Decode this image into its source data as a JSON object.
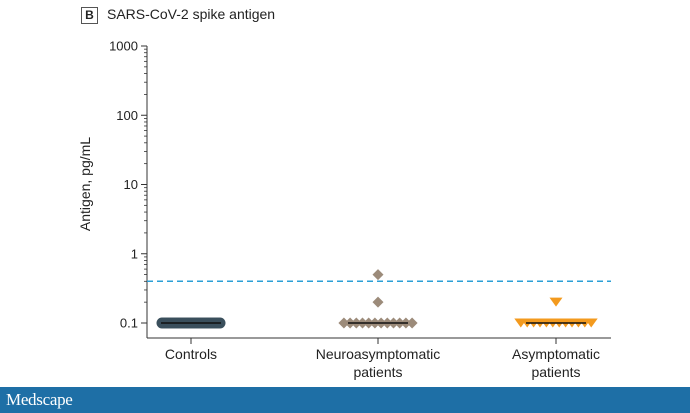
{
  "panel": {
    "badge": "B",
    "title": "SARS-CoV-2 spike antigen"
  },
  "footer": {
    "logo_text": "Medscape"
  },
  "chart_data": {
    "type": "scatter",
    "title": "SARS-CoV-2 spike antigen",
    "ylabel": "Antigen, pg/mL",
    "yscale": "log",
    "ylim": [
      0.1,
      1000
    ],
    "yticks": [
      0.1,
      1,
      10,
      100,
      1000
    ],
    "ytick_labels": [
      "0.1",
      "1",
      "10",
      "100",
      "1000"
    ],
    "threshold": 0.4,
    "categories": [
      {
        "label_lines": [
          "Controls"
        ]
      },
      {
        "label_lines": [
          "Neuroasymptomatic",
          "patients"
        ]
      },
      {
        "label_lines": [
          "Asymptomatic",
          "patients"
        ]
      }
    ],
    "series": [
      {
        "category_index": 0,
        "marker": "circle",
        "color": "#3a4f5c",
        "values": [
          0.1,
          0.1,
          0.1,
          0.1,
          0.1,
          0.1,
          0.1,
          0.1,
          0.1,
          0.1,
          0.1,
          0.1,
          0.1,
          0.1,
          0.1,
          0.1,
          0.1,
          0.1,
          0.1,
          0.1,
          0.1,
          0.1,
          0.1,
          0.1,
          0.1,
          0.1,
          0.1,
          0.1,
          0.1,
          0.1
        ],
        "median": 0.1
      },
      {
        "category_index": 1,
        "marker": "diamond",
        "color": "#9c8b7a",
        "values": [
          0.1,
          0.1,
          0.1,
          0.1,
          0.1,
          0.1,
          0.1,
          0.1,
          0.1,
          0.1,
          0.1,
          0.1,
          0.2,
          0.5
        ],
        "median": 0.1
      },
      {
        "category_index": 2,
        "marker": "triangle-down",
        "color": "#f39a1e",
        "values": [
          0.1,
          0.1,
          0.1,
          0.1,
          0.1,
          0.1,
          0.1,
          0.1,
          0.1,
          0.1,
          0.1,
          0.1,
          0.2
        ],
        "median": 0.1
      }
    ],
    "colors": {
      "axis": "#333333",
      "threshold": "#2a9fd6",
      "median": "#111111"
    },
    "grid": false
  }
}
